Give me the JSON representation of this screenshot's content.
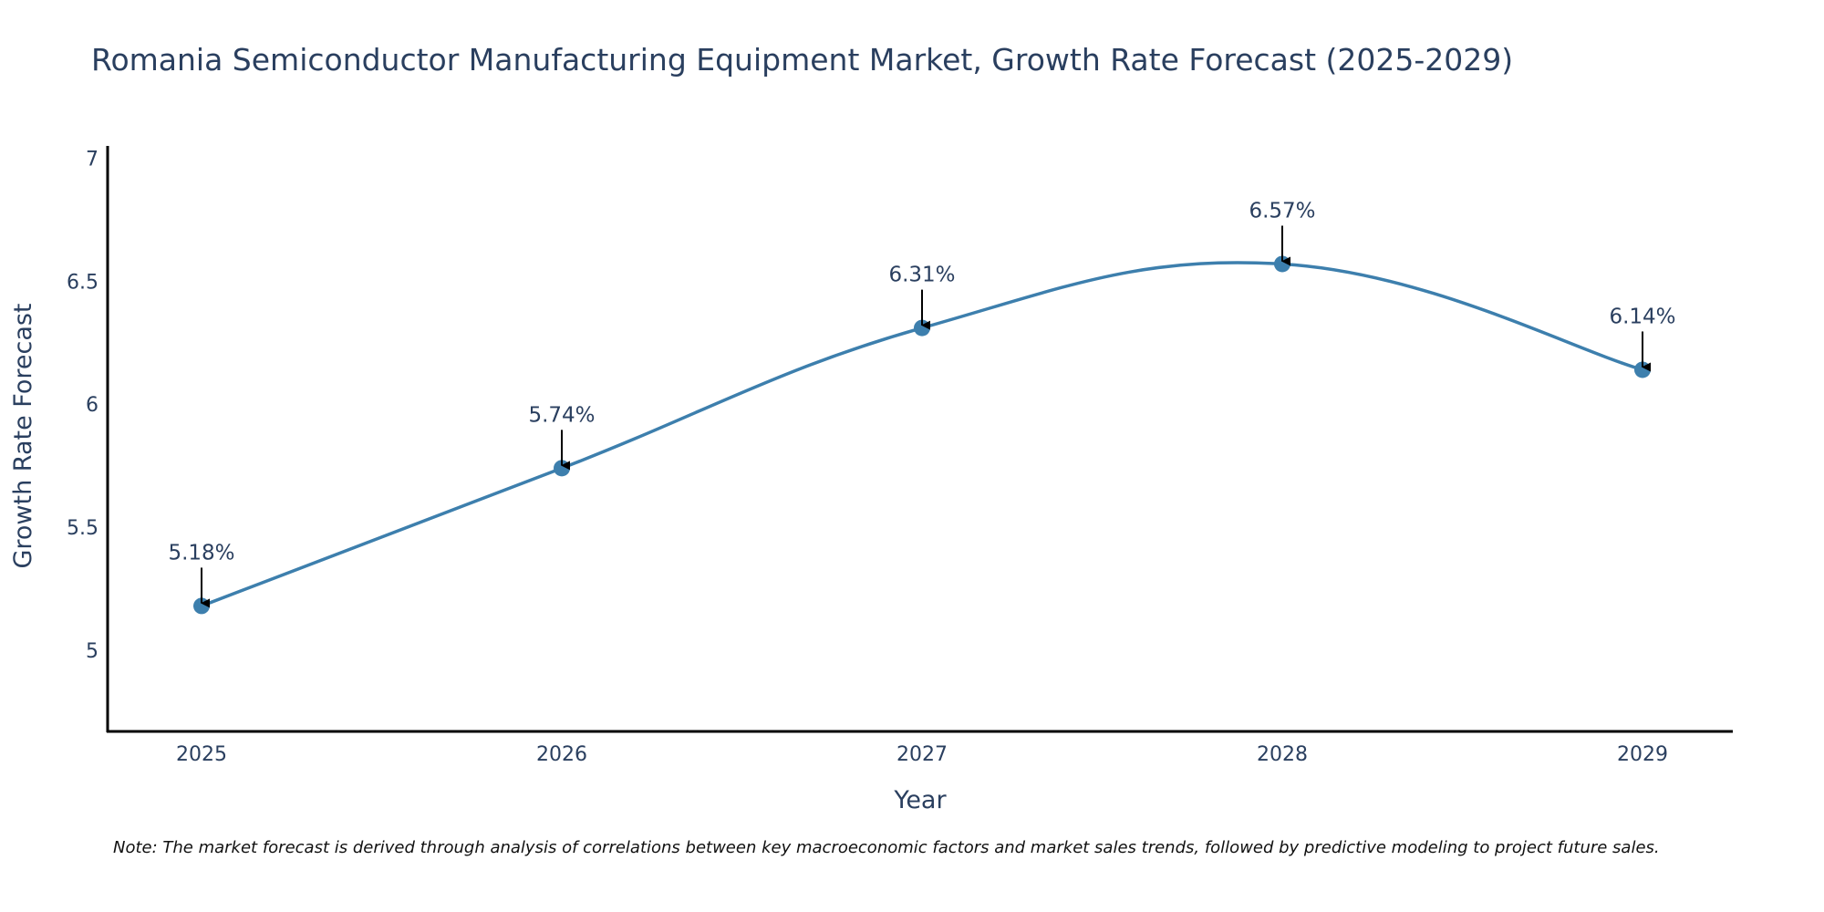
{
  "chart_data": {
    "type": "line",
    "title": "Romania Semiconductor Manufacturing Equipment Market, Growth Rate Forecast (2025-2029)",
    "xlabel": "Year",
    "ylabel": "Growth Rate Forecast",
    "categories": [
      "2025",
      "2026",
      "2027",
      "2028",
      "2029"
    ],
    "values": [
      5.18,
      5.74,
      6.31,
      6.57,
      6.14
    ],
    "data_labels": [
      "5.18%",
      "5.74%",
      "6.31%",
      "6.57%",
      "6.14%"
    ],
    "ylim": [
      4.67,
      7.05
    ],
    "yticks": [
      5,
      5.5,
      6,
      6.5,
      7
    ],
    "ytick_labels": [
      "5",
      "5.5",
      "6",
      "6.5",
      "7"
    ],
    "line_color": "#3d7fad",
    "marker_color": "#3d7fad",
    "grid": false,
    "note": "Note: The market forecast is derived through analysis of correlations between key macroeconomic factors and market sales trends, followed by predictive modeling to project future sales."
  }
}
